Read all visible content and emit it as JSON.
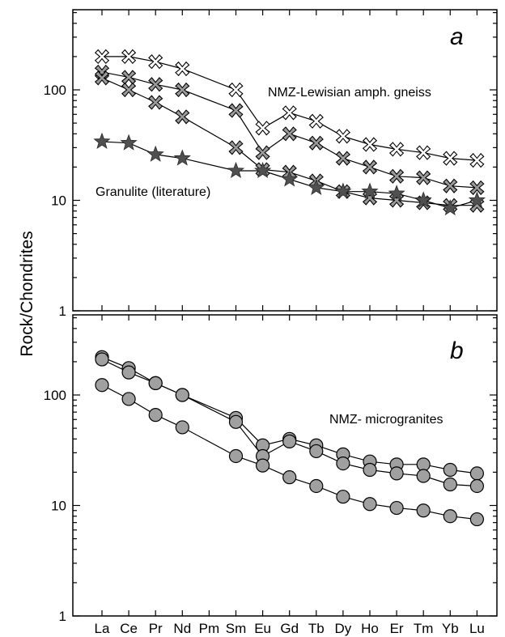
{
  "chart_data": [
    {
      "type": "line",
      "panel_label": "a",
      "ylabel": "Rock/Chondrites",
      "yscale": "log",
      "ylim": [
        1,
        500
      ],
      "yticks": [
        "1",
        "10",
        "100"
      ],
      "categories": [
        "La",
        "Ce",
        "Pr",
        "Nd",
        "Pm",
        "Sm",
        "Eu",
        "Gd",
        "Tb",
        "Dy",
        "Ho",
        "Er",
        "Tm",
        "Yb",
        "Lu"
      ],
      "annotations": [
        "NMZ-Lewisian amph. gneiss",
        "Granulite (literature)"
      ],
      "series": [
        {
          "marker": "x-light",
          "values": [
            200,
            200,
            180,
            155,
            null,
            100,
            45,
            62,
            52,
            38,
            32,
            29,
            27,
            24,
            23
          ]
        },
        {
          "marker": "x-dark",
          "values": [
            145,
            130,
            112,
            100,
            null,
            65,
            27,
            40,
            33,
            24,
            20,
            16.5,
            16,
            13.5,
            13
          ]
        },
        {
          "marker": "x-dark",
          "values": [
            128,
            100,
            77,
            57,
            null,
            30,
            19,
            18,
            15,
            12,
            10.5,
            10,
            9.5,
            9,
            9
          ]
        },
        {
          "marker": "star",
          "values": [
            34,
            33,
            26,
            24,
            null,
            18.5,
            18.5,
            15.5,
            13,
            12,
            12,
            11.5,
            10,
            8.5,
            10
          ]
        }
      ]
    },
    {
      "type": "line",
      "panel_label": "b",
      "ylabel": "Rock/Chondrites",
      "yscale": "log",
      "ylim": [
        1,
        500
      ],
      "yticks": [
        "1",
        "10",
        "100"
      ],
      "categories": [
        "La",
        "Ce",
        "Pr",
        "Nd",
        "Pm",
        "Sm",
        "Eu",
        "Gd",
        "Tb",
        "Dy",
        "Ho",
        "Er",
        "Tm",
        "Yb",
        "Lu"
      ],
      "annotations": [
        "NMZ- microgranites"
      ],
      "series": [
        {
          "marker": "circle",
          "values": [
            220,
            175,
            128,
            100,
            null,
            62,
            35,
            40,
            35,
            29,
            25,
            23.5,
            23.5,
            21,
            19.5
          ]
        },
        {
          "marker": "circle",
          "values": [
            210,
            160,
            128,
            100,
            null,
            57,
            28,
            38,
            31,
            24,
            21,
            19.5,
            18.5,
            15.5,
            15
          ]
        },
        {
          "marker": "circle",
          "values": [
            123,
            92,
            66,
            51,
            null,
            28,
            23,
            18,
            15,
            12,
            10.3,
            9.5,
            9,
            8,
            7.5
          ]
        }
      ]
    }
  ],
  "colors": {
    "marker_fill_light": "#ffffff",
    "marker_fill_dark": "#9a9a9a",
    "star_fill": "#505050",
    "circle_fill": "#a0a0a0",
    "line": "#000000"
  }
}
